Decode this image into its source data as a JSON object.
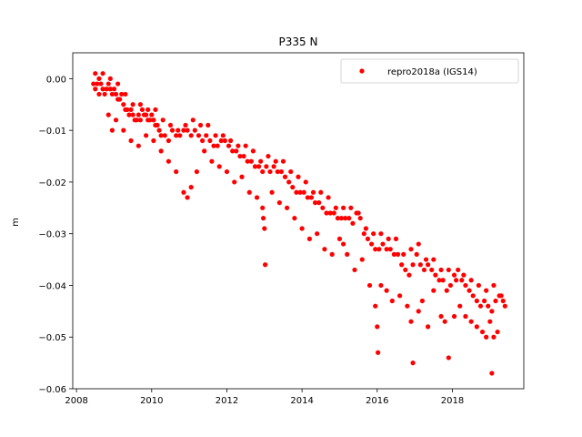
{
  "chart_data": {
    "type": "scatter",
    "title": "P335 N",
    "xlabel": "",
    "ylabel": "m",
    "xlim": [
      2007.9,
      2019.9
    ],
    "ylim": [
      -0.06,
      0.005
    ],
    "xticks": [
      2008,
      2010,
      2012,
      2014,
      2016,
      2018
    ],
    "xtick_labels": [
      "2008",
      "2010",
      "2012",
      "2014",
      "2016",
      "2018"
    ],
    "yticks": [
      0.0,
      -0.01,
      -0.02,
      -0.03,
      -0.04,
      -0.05,
      -0.06
    ],
    "ytick_labels": [
      "0.00",
      "−0.01",
      "−0.02",
      "−0.03",
      "−0.04",
      "−0.05",
      "−0.06"
    ],
    "legend_position": "top-right",
    "grid": false,
    "series": [
      {
        "name": "repro2018a (IGS14)",
        "color": "#ff0000",
        "marker": "circle",
        "x": [
          2008.45,
          2008.5,
          2008.55,
          2008.6,
          2008.65,
          2008.7,
          2008.75,
          2008.8,
          2008.85,
          2008.9,
          2008.95,
          2009.0,
          2009.05,
          2009.1,
          2009.15,
          2009.2,
          2009.25,
          2009.3,
          2009.35,
          2009.4,
          2009.45,
          2009.5,
          2009.55,
          2009.6,
          2009.65,
          2009.7,
          2009.75,
          2009.8,
          2009.85,
          2009.9,
          2009.95,
          2010.0,
          2010.05,
          2010.1,
          2010.15,
          2010.2,
          2010.25,
          2010.35,
          2010.45,
          2010.55,
          2010.65,
          2010.75,
          2010.85,
          2010.95,
          2011.05,
          2011.15,
          2011.25,
          2011.35,
          2011.45,
          2011.55,
          2011.65,
          2011.75,
          2011.85,
          2011.95,
          2012.05,
          2012.15,
          2012.25,
          2012.35,
          2012.45,
          2012.55,
          2012.65,
          2012.75,
          2012.85,
          2012.95,
          2013.05,
          2013.15,
          2013.25,
          2013.35,
          2013.45,
          2013.55,
          2013.65,
          2013.75,
          2013.85,
          2013.95,
          2014.05,
          2014.15,
          2014.25,
          2014.35,
          2014.45,
          2014.55,
          2014.65,
          2014.75,
          2014.85,
          2014.95,
          2015.05,
          2015.15,
          2015.25,
          2015.35,
          2015.45,
          2015.55,
          2015.65,
          2015.75,
          2015.85,
          2015.95,
          2016.05,
          2016.15,
          2016.25,
          2016.35,
          2016.45,
          2016.55,
          2016.65,
          2016.75,
          2016.85,
          2016.95,
          2017.05,
          2017.15,
          2017.25,
          2017.35,
          2017.45,
          2017.55,
          2017.65,
          2017.75,
          2017.85,
          2017.95,
          2018.05,
          2018.15,
          2018.25,
          2018.35,
          2018.45,
          2018.55,
          2018.65,
          2018.75,
          2018.85,
          2018.95,
          2019.05,
          2019.15,
          2019.25,
          2019.35,
          2019.4,
          2008.5,
          2008.6,
          2008.7,
          2008.9,
          2009.1,
          2009.3,
          2009.5,
          2009.7,
          2009.9,
          2010.1,
          2010.3,
          2010.5,
          2010.7,
          2010.9,
          2011.1,
          2011.3,
          2011.5,
          2011.7,
          2011.9,
          2012.1,
          2012.3,
          2012.5,
          2012.7,
          2012.9,
          2013.1,
          2013.3,
          2013.5,
          2013.7,
          2013.9,
          2014.1,
          2014.3,
          2014.5,
          2014.7,
          2014.9,
          2015.1,
          2015.3,
          2015.5,
          2015.7,
          2015.9,
          2016.1,
          2016.3,
          2016.5,
          2016.7,
          2016.9,
          2017.1,
          2017.3,
          2017.5,
          2017.7,
          2017.9,
          2018.1,
          2018.3,
          2018.5,
          2018.7,
          2018.9,
          2019.1,
          2019.3,
          2008.85,
          2008.95,
          2009.05,
          2009.25,
          2009.45,
          2009.65,
          2009.85,
          2010.05,
          2010.25,
          2010.45,
          2010.65,
          2010.85,
          2010.95,
          2011.05,
          2011.2,
          2011.4,
          2011.6,
          2011.8,
          2012.0,
          2012.2,
          2012.4,
          2012.6,
          2012.8,
          2012.95,
          2012.97,
          2013.0,
          2013.02,
          2013.2,
          2013.4,
          2013.6,
          2013.8,
          2014.0,
          2014.2,
          2014.4,
          2014.6,
          2014.8,
          2015.0,
          2015.1,
          2015.2,
          2015.4,
          2015.6,
          2015.8,
          2015.95,
          2016.0,
          2016.02,
          2016.1,
          2016.25,
          2016.4,
          2016.6,
          2016.8,
          2016.9,
          2016.95,
          2017.1,
          2017.2,
          2017.35,
          2017.5,
          2017.7,
          2017.8,
          2017.9,
          2018.05,
          2018.2,
          2018.35,
          2018.5,
          2018.65,
          2018.8,
          2018.9,
          2019.0,
          2019.05,
          2019.1,
          2019.2
        ],
        "y": [
          -0.001,
          -0.002,
          -0.001,
          -0.003,
          -0.001,
          -0.002,
          -0.003,
          -0.002,
          -0.001,
          -0.002,
          -0.003,
          -0.002,
          -0.003,
          -0.004,
          -0.004,
          -0.003,
          -0.005,
          -0.006,
          -0.006,
          -0.007,
          -0.006,
          -0.007,
          -0.008,
          -0.008,
          -0.007,
          -0.008,
          -0.006,
          -0.007,
          -0.007,
          -0.008,
          -0.008,
          -0.007,
          -0.008,
          -0.009,
          -0.009,
          -0.01,
          -0.011,
          -0.011,
          -0.012,
          -0.01,
          -0.011,
          -0.011,
          -0.01,
          -0.01,
          -0.011,
          -0.01,
          -0.011,
          -0.012,
          -0.011,
          -0.012,
          -0.013,
          -0.013,
          -0.012,
          -0.012,
          -0.013,
          -0.014,
          -0.014,
          -0.015,
          -0.015,
          -0.016,
          -0.016,
          -0.017,
          -0.017,
          -0.018,
          -0.017,
          -0.018,
          -0.017,
          -0.018,
          -0.018,
          -0.019,
          -0.02,
          -0.021,
          -0.022,
          -0.022,
          -0.022,
          -0.023,
          -0.023,
          -0.024,
          -0.024,
          -0.025,
          -0.026,
          -0.026,
          -0.026,
          -0.027,
          -0.027,
          -0.027,
          -0.027,
          -0.028,
          -0.026,
          -0.027,
          -0.03,
          -0.031,
          -0.032,
          -0.033,
          -0.033,
          -0.032,
          -0.033,
          -0.033,
          -0.034,
          -0.034,
          -0.036,
          -0.037,
          -0.038,
          -0.036,
          -0.034,
          -0.036,
          -0.037,
          -0.036,
          -0.037,
          -0.038,
          -0.039,
          -0.039,
          -0.041,
          -0.04,
          -0.038,
          -0.037,
          -0.039,
          -0.04,
          -0.041,
          -0.042,
          -0.043,
          -0.044,
          -0.043,
          -0.044,
          -0.045,
          -0.043,
          -0.042,
          -0.043,
          -0.044,
          0.001,
          0.0,
          0.001,
          0.0,
          -0.001,
          -0.003,
          -0.005,
          -0.005,
          -0.006,
          -0.006,
          -0.008,
          -0.009,
          -0.01,
          -0.009,
          -0.008,
          -0.009,
          -0.009,
          -0.011,
          -0.011,
          -0.012,
          -0.013,
          -0.013,
          -0.014,
          -0.016,
          -0.015,
          -0.016,
          -0.016,
          -0.018,
          -0.019,
          -0.02,
          -0.022,
          -0.022,
          -0.023,
          -0.025,
          -0.025,
          -0.025,
          -0.026,
          -0.029,
          -0.03,
          -0.03,
          -0.031,
          -0.031,
          -0.034,
          -0.033,
          -0.032,
          -0.035,
          -0.035,
          -0.037,
          -0.037,
          -0.039,
          -0.038,
          -0.039,
          -0.04,
          -0.041,
          -0.04,
          -0.042,
          -0.007,
          -0.01,
          -0.008,
          -0.01,
          -0.012,
          -0.013,
          -0.011,
          -0.012,
          -0.014,
          -0.016,
          -0.018,
          -0.022,
          -0.023,
          -0.021,
          -0.018,
          -0.014,
          -0.016,
          -0.017,
          -0.018,
          -0.02,
          -0.019,
          -0.022,
          -0.023,
          -0.025,
          -0.027,
          -0.029,
          -0.036,
          -0.022,
          -0.024,
          -0.025,
          -0.027,
          -0.029,
          -0.031,
          -0.03,
          -0.033,
          -0.034,
          -0.031,
          -0.032,
          -0.034,
          -0.037,
          -0.035,
          -0.04,
          -0.044,
          -0.048,
          -0.053,
          -0.04,
          -0.041,
          -0.043,
          -0.042,
          -0.044,
          -0.047,
          -0.055,
          -0.045,
          -0.043,
          -0.048,
          -0.041,
          -0.046,
          -0.047,
          -0.054,
          -0.046,
          -0.044,
          -0.046,
          -0.047,
          -0.048,
          -0.049,
          -0.05,
          -0.047,
          -0.057,
          -0.05,
          -0.049
        ]
      }
    ]
  }
}
